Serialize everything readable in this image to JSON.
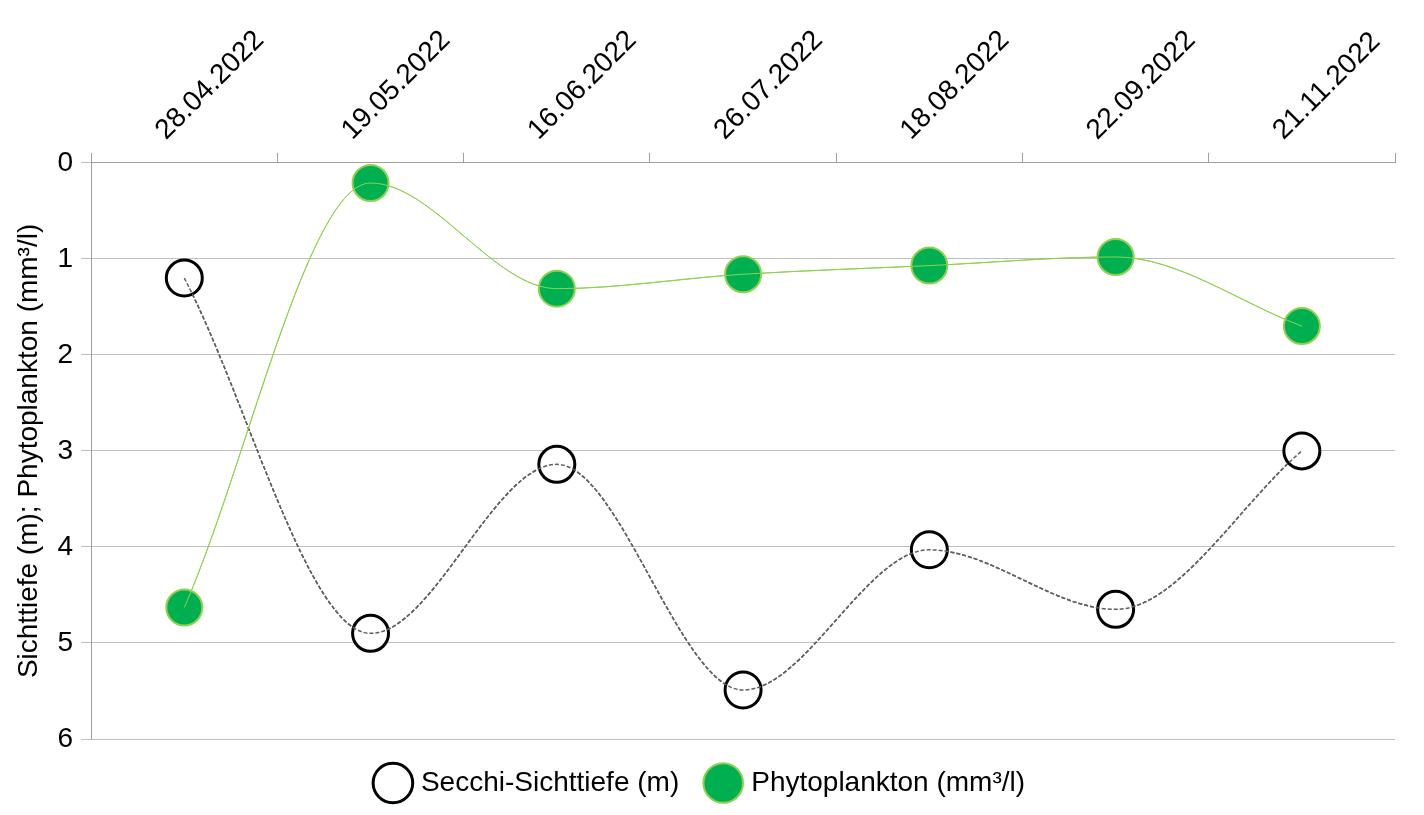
{
  "chart_data": {
    "type": "line",
    "ylabel": "Sichttiefe (m); Phytoplankton (mm³/l)",
    "categories": [
      "28.04.2022",
      "19.05.2022",
      "16.06.2022",
      "26.07.2022",
      "18.08.2022",
      "22.09.2022",
      "21.11.2022"
    ],
    "series": [
      {
        "name": "Secchi-Sichttiefe (m)",
        "color": "#000000",
        "line_style": "dashed",
        "values": [
          1.2,
          4.9,
          3.14,
          5.49,
          4.03,
          4.65,
          3.0
        ]
      },
      {
        "name": "Phytoplankton (mm³/l)",
        "color": "#00b050",
        "line_style": "solid",
        "values": [
          4.63,
          0.21,
          1.31,
          1.16,
          1.07,
          0.98,
          1.7
        ]
      }
    ],
    "ylim": [
      6,
      0
    ],
    "yticks": [
      0,
      1,
      2,
      3,
      4,
      5,
      6
    ],
    "grid": "y",
    "legend": "bottom",
    "marker": "circle"
  }
}
